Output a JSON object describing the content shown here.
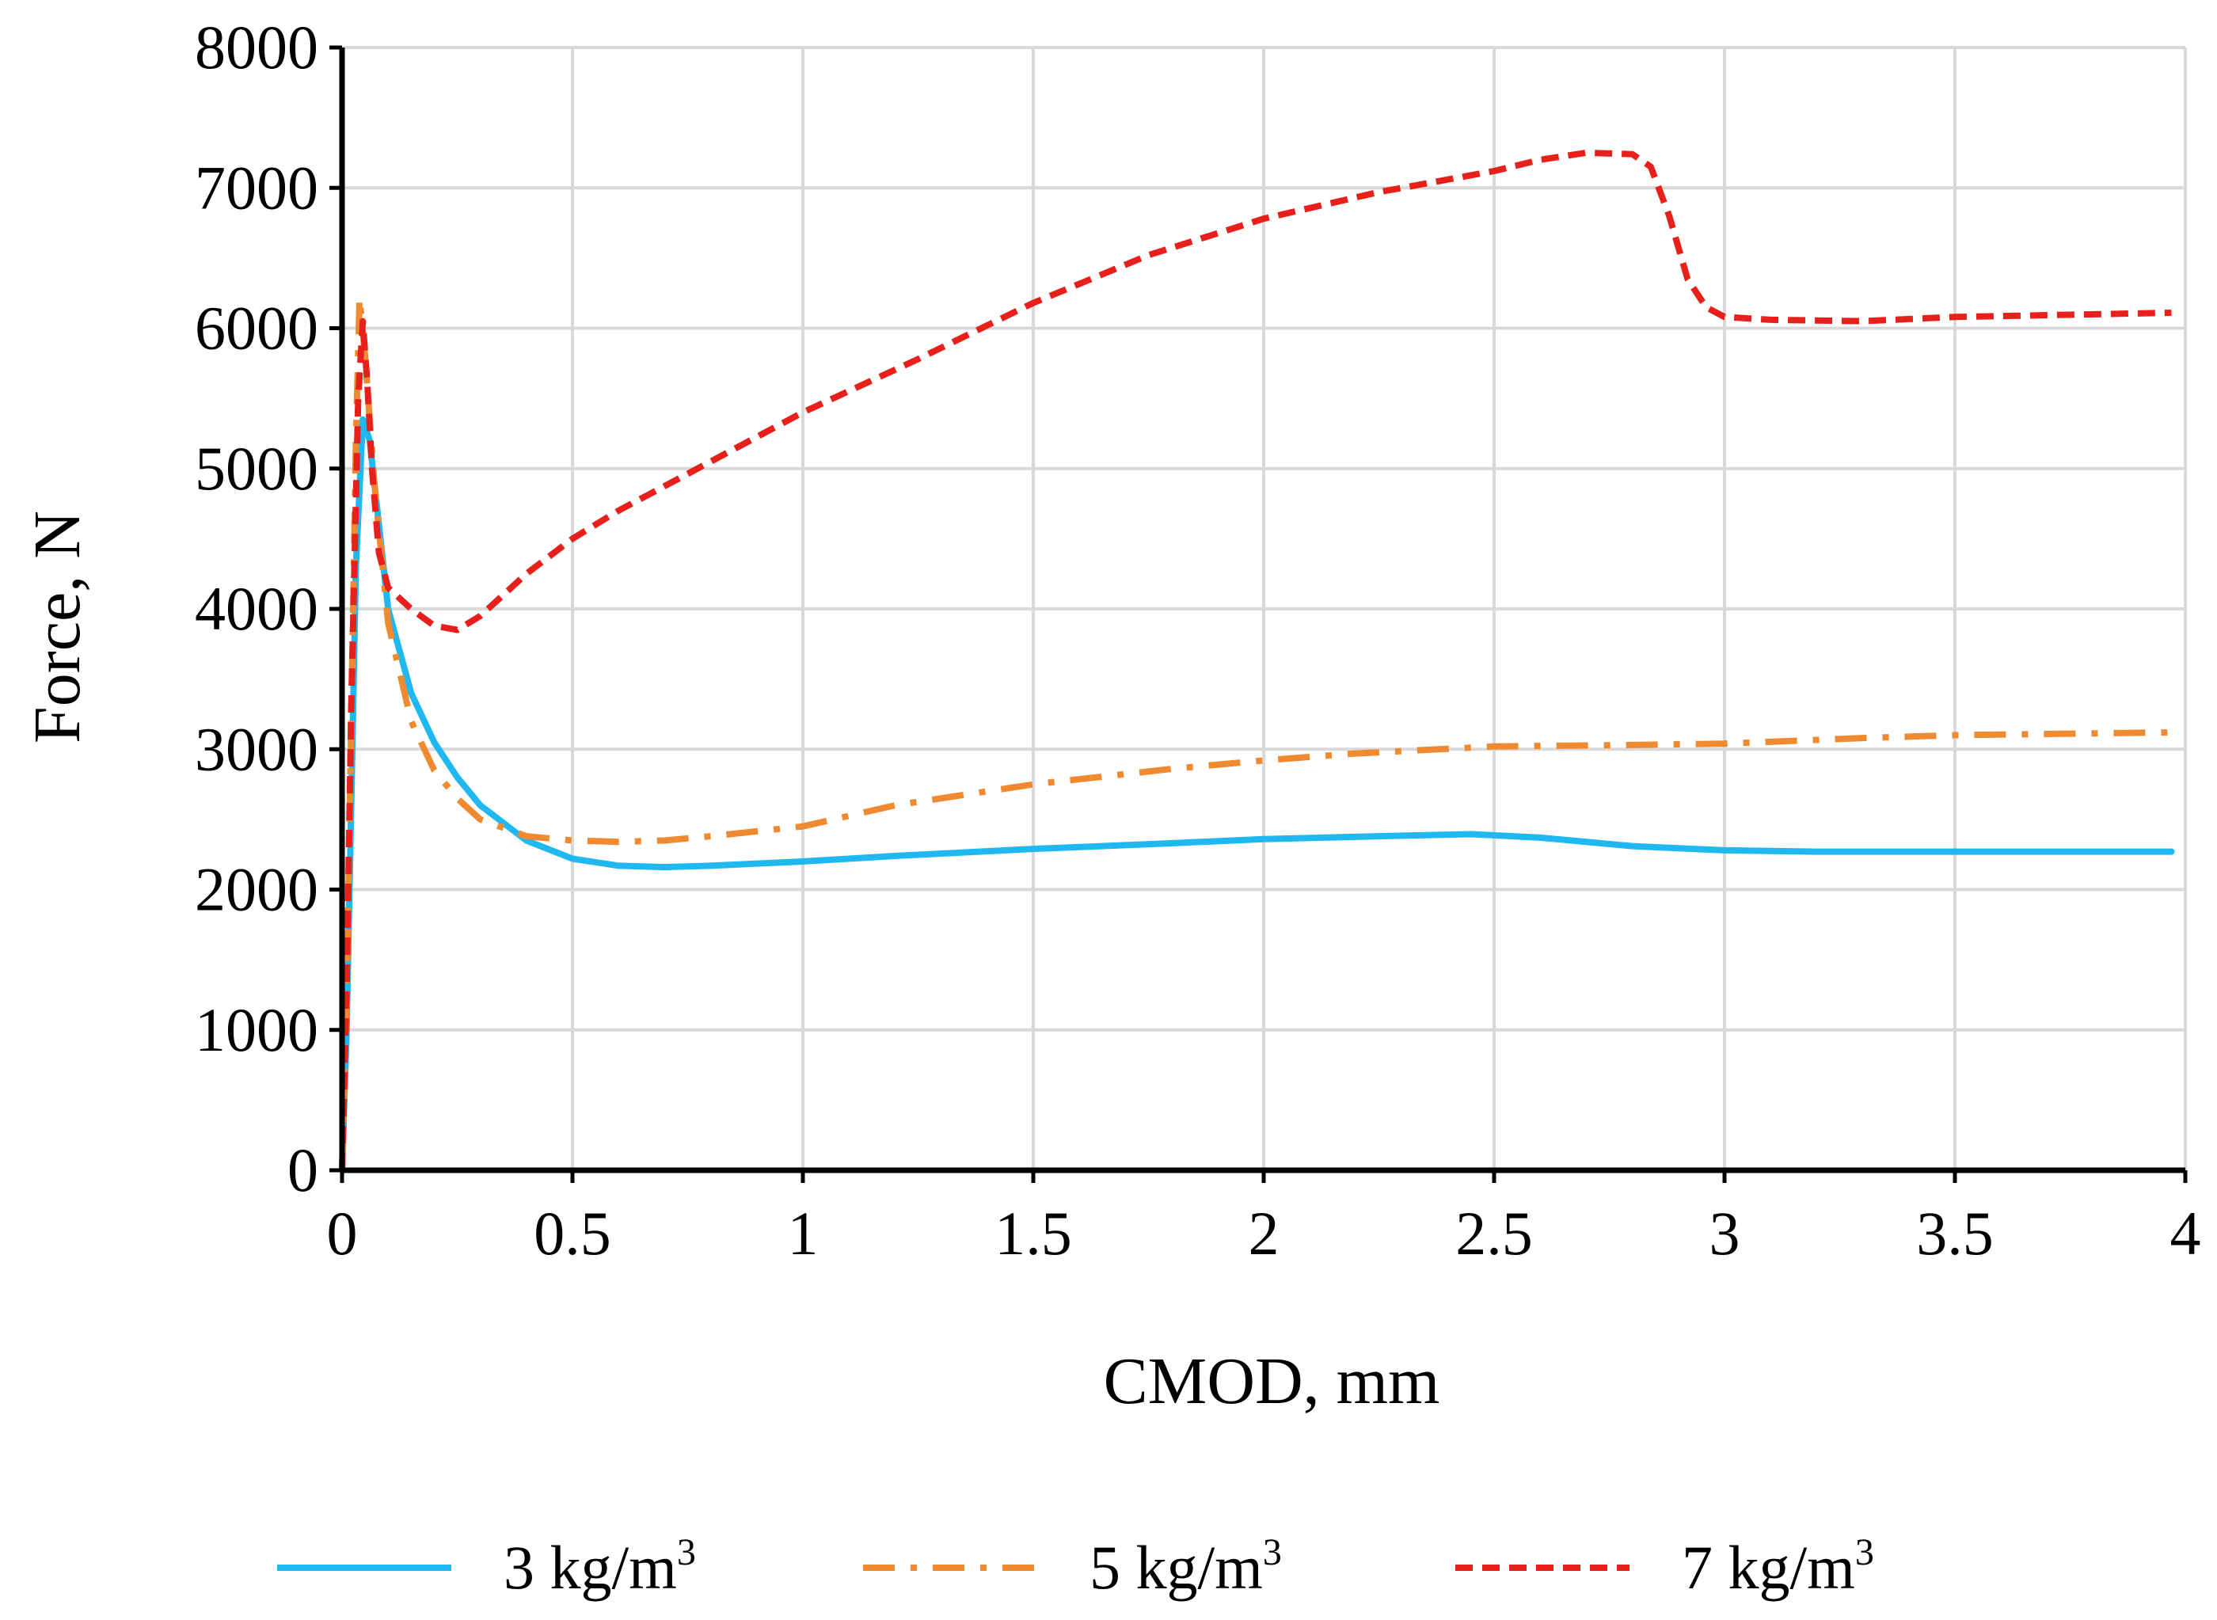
{
  "chart_data": {
    "type": "line",
    "title": "",
    "xlabel": "CMOD, mm",
    "ylabel": "Force, N",
    "xlim": [
      0,
      4
    ],
    "ylim": [
      0,
      8000
    ],
    "x_ticks": [
      "0",
      "0.5",
      "1",
      "1.5",
      "2",
      "2.5",
      "3",
      "3.5",
      "4"
    ],
    "y_ticks": [
      "0",
      "1000",
      "2000",
      "3000",
      "4000",
      "5000",
      "6000",
      "7000",
      "8000"
    ],
    "grid": true,
    "legend_position": "bottom",
    "series": [
      {
        "name": "3 kg/m",
        "unit_exponent": "3",
        "color": "#1fb8f0",
        "style": "solid",
        "points": [
          [
            0,
            0
          ],
          [
            0.01,
            1000
          ],
          [
            0.02,
            2600
          ],
          [
            0.03,
            4300
          ],
          [
            0.045,
            5350
          ],
          [
            0.06,
            5200
          ],
          [
            0.08,
            4600
          ],
          [
            0.1,
            4000
          ],
          [
            0.15,
            3400
          ],
          [
            0.2,
            3050
          ],
          [
            0.25,
            2800
          ],
          [
            0.3,
            2600
          ],
          [
            0.4,
            2350
          ],
          [
            0.5,
            2220
          ],
          [
            0.6,
            2170
          ],
          [
            0.7,
            2160
          ],
          [
            0.8,
            2170
          ],
          [
            1.0,
            2200
          ],
          [
            1.2,
            2240
          ],
          [
            1.5,
            2290
          ],
          [
            1.8,
            2330
          ],
          [
            2.0,
            2360
          ],
          [
            2.25,
            2380
          ],
          [
            2.45,
            2395
          ],
          [
            2.6,
            2370
          ],
          [
            2.8,
            2310
          ],
          [
            3.0,
            2280
          ],
          [
            3.2,
            2270
          ],
          [
            3.5,
            2270
          ],
          [
            3.97,
            2270
          ]
        ]
      },
      {
        "name": "5 kg/m",
        "unit_exponent": "3",
        "color": "#f08a30",
        "style": "dashdot",
        "points": [
          [
            0,
            0
          ],
          [
            0.01,
            1200
          ],
          [
            0.02,
            3200
          ],
          [
            0.03,
            5200
          ],
          [
            0.038,
            6220
          ],
          [
            0.05,
            5800
          ],
          [
            0.07,
            4900
          ],
          [
            0.1,
            3900
          ],
          [
            0.15,
            3200
          ],
          [
            0.2,
            2850
          ],
          [
            0.25,
            2650
          ],
          [
            0.3,
            2500
          ],
          [
            0.4,
            2380
          ],
          [
            0.5,
            2350
          ],
          [
            0.6,
            2340
          ],
          [
            0.7,
            2350
          ],
          [
            0.8,
            2380
          ],
          [
            1.0,
            2450
          ],
          [
            1.2,
            2600
          ],
          [
            1.5,
            2750
          ],
          [
            1.8,
            2860
          ],
          [
            2.0,
            2920
          ],
          [
            2.2,
            2970
          ],
          [
            2.5,
            3020
          ],
          [
            2.8,
            3030
          ],
          [
            3.0,
            3040
          ],
          [
            3.3,
            3080
          ],
          [
            3.5,
            3100
          ],
          [
            3.97,
            3120
          ]
        ]
      },
      {
        "name": "7 kg/m",
        "unit_exponent": "3",
        "color": "#e8201c",
        "style": "dashed",
        "points": [
          [
            0,
            0
          ],
          [
            0.01,
            1300
          ],
          [
            0.02,
            3300
          ],
          [
            0.035,
            5500
          ],
          [
            0.045,
            6050
          ],
          [
            0.055,
            5600
          ],
          [
            0.065,
            5000
          ],
          [
            0.08,
            4400
          ],
          [
            0.1,
            4150
          ],
          [
            0.15,
            4000
          ],
          [
            0.2,
            3880
          ],
          [
            0.25,
            3850
          ],
          [
            0.3,
            3950
          ],
          [
            0.4,
            4250
          ],
          [
            0.5,
            4500
          ],
          [
            0.6,
            4700
          ],
          [
            0.8,
            5050
          ],
          [
            1.0,
            5400
          ],
          [
            1.25,
            5780
          ],
          [
            1.5,
            6180
          ],
          [
            1.75,
            6520
          ],
          [
            2.0,
            6780
          ],
          [
            2.25,
            6970
          ],
          [
            2.5,
            7120
          ],
          [
            2.6,
            7200
          ],
          [
            2.7,
            7250
          ],
          [
            2.8,
            7240
          ],
          [
            2.84,
            7150
          ],
          [
            2.88,
            6800
          ],
          [
            2.92,
            6350
          ],
          [
            2.96,
            6150
          ],
          [
            3.0,
            6080
          ],
          [
            3.1,
            6060
          ],
          [
            3.3,
            6050
          ],
          [
            3.5,
            6080
          ],
          [
            3.97,
            6110
          ]
        ]
      }
    ]
  }
}
